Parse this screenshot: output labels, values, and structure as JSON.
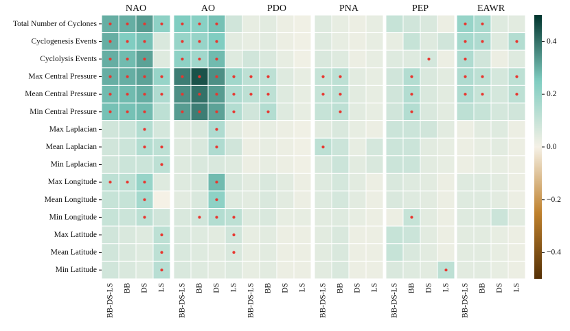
{
  "chart_data": {
    "type": "heatmap",
    "panels": [
      "NAO",
      "AO",
      "PDO",
      "PNA",
      "PEP",
      "EAWR"
    ],
    "columns": [
      "BB-DS-LS",
      "BB",
      "DS",
      "LS"
    ],
    "rows": [
      "Total Number of Cyclones",
      "Cyclogenesis Events",
      "Cyclolysis Events",
      "Max Central Pressure",
      "Mean Central Pressure",
      "Min Central Pressure",
      "Max Laplacian",
      "Mean Laplacian",
      "Min Laplacian",
      "Max Longitude",
      "Mean Longitude",
      "Min Longitude",
      "Max Latitude",
      "Mean Latitude",
      "Min Latitude"
    ],
    "values": [
      [
        [
          0.3,
          0.3,
          0.33,
          0.22
        ],
        [
          0.25,
          0.23,
          0.27,
          0.08
        ],
        [
          0.03,
          0.04,
          0.02,
          0.01
        ],
        [
          0.05,
          0.03,
          0.02,
          0.03
        ],
        [
          0.1,
          0.08,
          0.06,
          0.02
        ],
        [
          0.2,
          0.16,
          0.05,
          0.04
        ]
      ],
      [
        [
          0.3,
          0.25,
          0.27,
          0.06
        ],
        [
          0.2,
          0.2,
          0.25,
          0.04
        ],
        [
          0.03,
          0.04,
          0.02,
          0.01
        ],
        [
          0.05,
          0.03,
          0.02,
          0.03
        ],
        [
          0.03,
          0.1,
          0.05,
          0.08
        ],
        [
          0.17,
          0.15,
          0.05,
          0.14
        ]
      ],
      [
        [
          0.3,
          0.28,
          0.32,
          0.05
        ],
        [
          0.22,
          0.18,
          0.28,
          0.05
        ],
        [
          0.08,
          0.06,
          0.03,
          0.01
        ],
        [
          0.06,
          0.05,
          0.02,
          0.03
        ],
        [
          0.05,
          0.05,
          0.07,
          0.02
        ],
        [
          0.15,
          0.08,
          0.02,
          0.05
        ]
      ],
      [
        [
          0.3,
          0.3,
          0.32,
          0.2
        ],
        [
          0.38,
          0.45,
          0.35,
          0.18
        ],
        [
          0.12,
          0.12,
          0.05,
          0.03
        ],
        [
          0.1,
          0.12,
          0.04,
          0.03
        ],
        [
          0.08,
          0.14,
          0.06,
          0.04
        ],
        [
          0.15,
          0.12,
          0.07,
          0.12
        ]
      ],
      [
        [
          0.28,
          0.28,
          0.3,
          0.15
        ],
        [
          0.35,
          0.4,
          0.33,
          0.15
        ],
        [
          0.12,
          0.12,
          0.05,
          0.03
        ],
        [
          0.1,
          0.12,
          0.04,
          0.03
        ],
        [
          0.08,
          0.14,
          0.06,
          0.04
        ],
        [
          0.15,
          0.1,
          0.07,
          0.12
        ]
      ],
      [
        [
          0.27,
          0.27,
          0.28,
          0.12
        ],
        [
          0.33,
          0.38,
          0.32,
          0.14
        ],
        [
          0.08,
          0.14,
          0.05,
          0.03
        ],
        [
          0.1,
          0.12,
          0.04,
          0.03
        ],
        [
          0.08,
          0.14,
          0.06,
          0.04
        ],
        [
          0.12,
          0.1,
          0.07,
          0.08
        ]
      ],
      [
        [
          0.08,
          0.09,
          0.14,
          0.07
        ],
        [
          0.05,
          0.06,
          0.15,
          0.04
        ],
        [
          0.02,
          0.03,
          0.02,
          0.01
        ],
        [
          0.04,
          0.06,
          0.03,
          0.02
        ],
        [
          0.09,
          0.09,
          0.08,
          0.04
        ],
        [
          0.02,
          0.04,
          0.05,
          0.02
        ]
      ],
      [
        [
          0.08,
          0.09,
          0.14,
          0.12
        ],
        [
          0.05,
          0.06,
          0.15,
          0.08
        ],
        [
          0.02,
          0.03,
          0.02,
          0.01
        ],
        [
          0.12,
          0.09,
          0.03,
          0.07
        ],
        [
          0.09,
          0.09,
          0.04,
          0.03
        ],
        [
          0.02,
          0.03,
          0.04,
          0.02
        ]
      ],
      [
        [
          0.08,
          0.09,
          0.09,
          0.12
        ],
        [
          0.05,
          0.06,
          0.06,
          0.05
        ],
        [
          0.02,
          0.03,
          0.02,
          0.01
        ],
        [
          0.06,
          0.09,
          0.04,
          0.06
        ],
        [
          0.09,
          0.09,
          0.04,
          0.03
        ],
        [
          0.02,
          0.03,
          0.03,
          0.02
        ]
      ],
      [
        [
          0.12,
          0.12,
          0.2,
          0.05
        ],
        [
          0.05,
          0.06,
          0.28,
          0.06
        ],
        [
          0.04,
          0.06,
          0.04,
          0.02
        ],
        [
          0.05,
          0.07,
          0.04,
          0.02
        ],
        [
          0.06,
          0.05,
          0.04,
          0.02
        ],
        [
          0.05,
          0.05,
          0.04,
          0.02
        ]
      ],
      [
        [
          0.1,
          0.1,
          0.17,
          0.0
        ],
        [
          0.04,
          0.06,
          0.22,
          0.05
        ],
        [
          0.04,
          0.06,
          0.04,
          0.02
        ],
        [
          0.05,
          0.07,
          0.04,
          0.02
        ],
        [
          0.06,
          0.05,
          0.04,
          0.02
        ],
        [
          0.05,
          0.05,
          0.04,
          0.02
        ]
      ],
      [
        [
          0.1,
          0.09,
          0.12,
          0.08
        ],
        [
          0.06,
          0.08,
          0.14,
          0.12
        ],
        [
          0.05,
          0.06,
          0.03,
          0.03
        ],
        [
          0.04,
          0.05,
          0.03,
          0.02
        ],
        [
          0.02,
          0.1,
          0.04,
          0.02
        ],
        [
          0.05,
          0.05,
          0.09,
          0.04
        ]
      ],
      [
        [
          0.08,
          0.06,
          0.05,
          0.12
        ],
        [
          0.06,
          0.05,
          0.04,
          0.08
        ],
        [
          0.03,
          0.04,
          0.02,
          0.02
        ],
        [
          0.04,
          0.06,
          0.02,
          0.02
        ],
        [
          0.1,
          0.09,
          0.04,
          0.02
        ],
        [
          0.04,
          0.04,
          0.03,
          0.02
        ]
      ],
      [
        [
          0.08,
          0.06,
          0.05,
          0.12
        ],
        [
          0.06,
          0.05,
          0.04,
          0.06
        ],
        [
          0.03,
          0.04,
          0.02,
          0.02
        ],
        [
          0.04,
          0.06,
          0.02,
          0.02
        ],
        [
          0.1,
          0.06,
          0.04,
          0.02
        ],
        [
          0.04,
          0.04,
          0.03,
          0.02
        ]
      ],
      [
        [
          0.08,
          0.06,
          0.05,
          0.13
        ],
        [
          0.06,
          0.05,
          0.04,
          0.05
        ],
        [
          0.03,
          0.04,
          0.02,
          0.02
        ],
        [
          0.04,
          0.06,
          0.02,
          0.02
        ],
        [
          0.06,
          0.05,
          0.04,
          0.12
        ],
        [
          0.04,
          0.04,
          0.03,
          0.02
        ]
      ]
    ],
    "significant": [
      [
        [
          1,
          1,
          1,
          1
        ],
        [
          1,
          1,
          1,
          0
        ],
        [
          0,
          0,
          0,
          0
        ],
        [
          0,
          0,
          0,
          0
        ],
        [
          0,
          0,
          0,
          0
        ],
        [
          1,
          1,
          0,
          0
        ]
      ],
      [
        [
          1,
          1,
          1,
          0
        ],
        [
          1,
          1,
          1,
          0
        ],
        [
          0,
          0,
          0,
          0
        ],
        [
          0,
          0,
          0,
          0
        ],
        [
          0,
          0,
          0,
          0
        ],
        [
          1,
          1,
          0,
          1
        ]
      ],
      [
        [
          1,
          1,
          1,
          0
        ],
        [
          1,
          1,
          1,
          0
        ],
        [
          0,
          0,
          0,
          0
        ],
        [
          0,
          0,
          0,
          0
        ],
        [
          0,
          0,
          1,
          0
        ],
        [
          1,
          0,
          0,
          0
        ]
      ],
      [
        [
          1,
          1,
          1,
          1
        ],
        [
          1,
          1,
          1,
          1
        ],
        [
          1,
          1,
          0,
          0
        ],
        [
          1,
          1,
          0,
          0
        ],
        [
          0,
          1,
          0,
          0
        ],
        [
          1,
          1,
          0,
          1
        ]
      ],
      [
        [
          1,
          1,
          1,
          1
        ],
        [
          1,
          1,
          1,
          1
        ],
        [
          1,
          1,
          0,
          0
        ],
        [
          1,
          1,
          0,
          0
        ],
        [
          0,
          1,
          0,
          0
        ],
        [
          1,
          1,
          0,
          1
        ]
      ],
      [
        [
          1,
          1,
          1,
          0
        ],
        [
          1,
          1,
          1,
          1
        ],
        [
          0,
          1,
          0,
          0
        ],
        [
          0,
          1,
          0,
          0
        ],
        [
          0,
          1,
          0,
          0
        ],
        [
          0,
          0,
          0,
          0
        ]
      ],
      [
        [
          0,
          0,
          1,
          0
        ],
        [
          0,
          0,
          1,
          0
        ],
        [
          0,
          0,
          0,
          0
        ],
        [
          0,
          0,
          0,
          0
        ],
        [
          0,
          0,
          0,
          0
        ],
        [
          0,
          0,
          0,
          0
        ]
      ],
      [
        [
          0,
          0,
          1,
          1
        ],
        [
          0,
          0,
          1,
          0
        ],
        [
          0,
          0,
          0,
          0
        ],
        [
          1,
          0,
          0,
          0
        ],
        [
          0,
          0,
          0,
          0
        ],
        [
          0,
          0,
          0,
          0
        ]
      ],
      [
        [
          0,
          0,
          0,
          1
        ],
        [
          0,
          0,
          0,
          0
        ],
        [
          0,
          0,
          0,
          0
        ],
        [
          0,
          0,
          0,
          0
        ],
        [
          0,
          0,
          0,
          0
        ],
        [
          0,
          0,
          0,
          0
        ]
      ],
      [
        [
          1,
          1,
          1,
          0
        ],
        [
          0,
          0,
          1,
          0
        ],
        [
          0,
          0,
          0,
          0
        ],
        [
          0,
          0,
          0,
          0
        ],
        [
          0,
          0,
          0,
          0
        ],
        [
          0,
          0,
          0,
          0
        ]
      ],
      [
        [
          0,
          0,
          1,
          0
        ],
        [
          0,
          0,
          1,
          0
        ],
        [
          0,
          0,
          0,
          0
        ],
        [
          0,
          0,
          0,
          0
        ],
        [
          0,
          0,
          0,
          0
        ],
        [
          0,
          0,
          0,
          0
        ]
      ],
      [
        [
          0,
          0,
          1,
          0
        ],
        [
          0,
          1,
          1,
          1
        ],
        [
          0,
          0,
          0,
          0
        ],
        [
          0,
          0,
          0,
          0
        ],
        [
          0,
          1,
          0,
          0
        ],
        [
          0,
          0,
          0,
          0
        ]
      ],
      [
        [
          0,
          0,
          0,
          1
        ],
        [
          0,
          0,
          0,
          1
        ],
        [
          0,
          0,
          0,
          0
        ],
        [
          0,
          0,
          0,
          0
        ],
        [
          0,
          0,
          0,
          0
        ],
        [
          0,
          0,
          0,
          0
        ]
      ],
      [
        [
          0,
          0,
          0,
          1
        ],
        [
          0,
          0,
          0,
          1
        ],
        [
          0,
          0,
          0,
          0
        ],
        [
          0,
          0,
          0,
          0
        ],
        [
          0,
          0,
          0,
          0
        ],
        [
          0,
          0,
          0,
          0
        ]
      ],
      [
        [
          0,
          0,
          0,
          1
        ],
        [
          0,
          0,
          0,
          0
        ],
        [
          0,
          0,
          0,
          0
        ],
        [
          0,
          0,
          0,
          0
        ],
        [
          0,
          0,
          0,
          1
        ],
        [
          0,
          0,
          0,
          0
        ]
      ]
    ],
    "colorbar": {
      "range": [
        -0.5,
        0.5
      ],
      "ticks": [
        0.4,
        0.2,
        0.0,
        -0.2,
        -0.4
      ],
      "tick_labels": [
        "0.4",
        "0.2",
        "0.0",
        "−0.2",
        "−0.4"
      ],
      "colormap": "BrBG",
      "colors": {
        "low": "#543005",
        "mid_low": "#bf812d",
        "center": "#f5f1e6",
        "mid_high": "#80cdc1",
        "high": "#00332c"
      }
    },
    "marker_color": "#e8352e",
    "cell_border_color": "#ffffff"
  }
}
